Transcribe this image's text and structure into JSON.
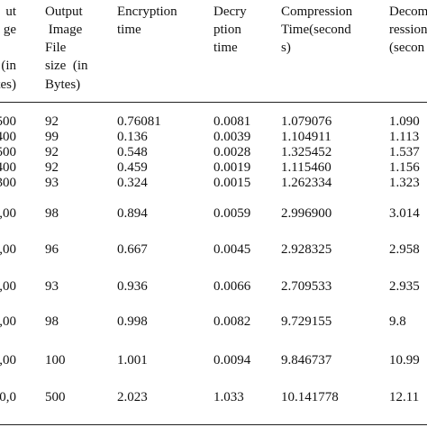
{
  "table": {
    "header": [
      [
        "ut",
        "ge",
        "",
        "(in",
        "tes)"
      ],
      [
        "Output",
        " Image",
        "File",
        "size  (in",
        "Bytes)"
      ],
      [
        "Encryption",
        "time"
      ],
      [
        "Decry",
        "ption",
        "time"
      ],
      [
        "Compression",
        "Time(second",
        "s)"
      ],
      [
        "Decom",
        "ression",
        "(secon"
      ]
    ],
    "rows": [
      [
        "500",
        "92",
        "0.76081",
        "0.0081",
        "1.079076",
        "1.090"
      ],
      [
        "400",
        "99",
        "0.136",
        "0.0039",
        "1.104911",
        "1.113"
      ],
      [
        "500",
        "92",
        "0.548",
        "0.0028",
        "1.325452",
        "1.537"
      ],
      [
        "400",
        "92",
        "0.459",
        "0.0019",
        "1.115460",
        "1.156"
      ],
      [
        "300",
        "93",
        "0.324",
        "0.0015",
        "1.262334",
        "1.323"
      ],
      [
        ",00",
        "98",
        "0.894",
        "0.0059",
        "2.996900",
        "3.014"
      ],
      [
        ",00",
        "96",
        "0.667",
        "0.0045",
        "2.928325",
        "2.958"
      ],
      [
        ",00",
        "93",
        "0.936",
        "0.0066",
        "2.709533",
        "2.935"
      ],
      [
        ",00",
        "98",
        "0.998",
        "0.0082",
        "9.729155",
        "9.8"
      ],
      [
        ",00",
        "100",
        "1.001",
        "0.0094",
        "9.846737",
        "10.99"
      ],
      [
        "0,0",
        "500",
        "2.023",
        "1.033",
        "10.141778",
        "12.11"
      ]
    ]
  }
}
